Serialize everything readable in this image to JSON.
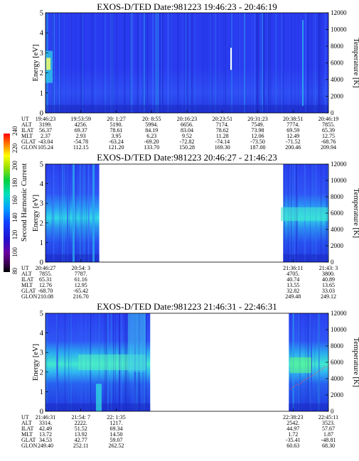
{
  "colorbar": {
    "label": "Second Harmonic Current",
    "ticks": [
      "240",
      "220",
      "200",
      "180",
      "160",
      "140",
      "120",
      "100",
      "80"
    ],
    "vmin": 80,
    "vmax": 240
  },
  "row_labels": [
    "UT",
    "ALT",
    "ILAT",
    "MLT",
    "GLAT",
    "GLON"
  ],
  "chart_data": [
    {
      "type": "heatmap",
      "title": "EXOS-D/TED   Date:981223  19:46:23 - 20:46:19",
      "ylabel": "Energy [eV]",
      "y2label": "Temperature [K]",
      "ylim": [
        0,
        5
      ],
      "y2lim": [
        0,
        12000
      ],
      "yticks": [
        "0",
        "1",
        "2",
        "3",
        "4",
        "5"
      ],
      "y2ticks": [
        "0",
        "2000",
        "4000",
        "6000",
        "8000",
        "10000",
        "12000"
      ],
      "data_coverage": [
        [
          0,
          1
        ]
      ],
      "columns": [
        {
          "t": 0.0,
          "UT": "19:46:23",
          "ALT": "3199.",
          "ILAT": "56.37",
          "MLT": "2.37",
          "GLAT": "-43.04",
          "GLON": "105.24"
        },
        {
          "t": 0.125,
          "UT": "19:53:59",
          "ALT": "4256.",
          "ILAT": "69.37",
          "MLT": "2.93",
          "GLAT": "-54.78",
          "GLON": "112.15"
        },
        {
          "t": 0.25,
          "UT": "20: 1:27",
          "ALT": "5190.",
          "ILAT": "78.61",
          "MLT": "3.95",
          "GLAT": "-63.24",
          "GLON": "121.20"
        },
        {
          "t": 0.375,
          "UT": "20: 8:55",
          "ALT": "5994.",
          "ILAT": "84.19",
          "MLT": "6.23",
          "GLAT": "-69.20",
          "GLON": "133.70"
        },
        {
          "t": 0.5,
          "UT": "20:16:23",
          "ALT": "6656.",
          "ILAT": "83.04",
          "MLT": "9.52",
          "GLAT": "-72.82",
          "GLON": "150.28"
        },
        {
          "t": 0.625,
          "UT": "20:23:51",
          "ALT": "7174.",
          "ILAT": "78.62",
          "MLT": "11.28",
          "GLAT": "-74.14",
          "GLON": "169.30"
        },
        {
          "t": 0.75,
          "UT": "20:31:23",
          "ALT": "7549.",
          "ILAT": "73.98",
          "MLT": "12.06",
          "GLAT": "-73.50",
          "GLON": "187.00"
        },
        {
          "t": 0.875,
          "UT": "20:38:51",
          "ALT": "7774.",
          "ILAT": "69.59",
          "MLT": "12.49",
          "GLAT": "-71.52",
          "GLON": "200.46"
        },
        {
          "t": 1.0,
          "UT": "20:46:19",
          "ALT": "7855.",
          "ILAT": "65.39",
          "MLT": "12.75",
          "GLAT": "-68.76",
          "GLON": "209.94"
        }
      ]
    },
    {
      "type": "heatmap",
      "title": "EXOS-D/TED   Date:981223  20:46:27 - 21:46:23",
      "ylabel": "Energy [eV]",
      "y2label": "Temperature [K]",
      "ylim": [
        0,
        5
      ],
      "y2lim": [
        0,
        12000
      ],
      "yticks": [
        "0",
        "1",
        "2",
        "3",
        "4",
        "5"
      ],
      "y2ticks": [
        "0",
        "2000",
        "4000",
        "6000",
        "8000",
        "10000",
        "12000"
      ],
      "data_coverage": [
        [
          0,
          0.19
        ],
        [
          0.84,
          1
        ]
      ],
      "columns": [
        {
          "t": 0.0,
          "UT": "20:46:27",
          "ALT": "7855.",
          "ILAT": "65.31",
          "MLT": "12.76",
          "GLAT": "-68.70",
          "GLON": "210.08"
        },
        {
          "t": 0.125,
          "UT": "20:54: 3",
          "ALT": "7787.",
          "ILAT": "61.16",
          "MLT": "12.95",
          "GLAT": "-65.42",
          "GLON": "216.70"
        },
        {
          "t": 0.875,
          "UT": "21:36:11",
          "ALT": "4705.",
          "ILAT": "40.74",
          "MLT": "13.55",
          "GLAT": "32.82",
          "GLON": "249.48"
        },
        {
          "t": 1.0,
          "UT": "21:43: 3",
          "ALT": "3800.",
          "ILAT": "40.89",
          "MLT": "13.65",
          "GLAT": "33.03",
          "GLON": "249.12"
        }
      ]
    },
    {
      "type": "heatmap",
      "title": "EXOS-D/TED   Date:981223  21:46:31 - 22:46:31",
      "ylabel": "Energy [eV]",
      "y2label": "Temperature [K]",
      "ylim": [
        0,
        5
      ],
      "y2lim": [
        0,
        12000
      ],
      "yticks": [
        "0",
        "1",
        "2",
        "3",
        "4",
        "5"
      ],
      "y2ticks": [
        "0",
        "2000",
        "4000",
        "6000",
        "8000",
        "10000",
        "12000"
      ],
      "data_coverage": [
        [
          0,
          0.37
        ],
        [
          0.86,
          1
        ]
      ],
      "columns": [
        {
          "t": 0.0,
          "UT": "21:46:31",
          "ALT": "3314.",
          "ILAT": "42.49",
          "MLT": "13.72",
          "GLAT": "34.53",
          "GLON": "249.40"
        },
        {
          "t": 0.125,
          "UT": "21:54: 7",
          "ALT": "2222.",
          "ILAT": "51.52",
          "MLT": "13.92",
          "GLAT": "42.77",
          "GLON": "252.11"
        },
        {
          "t": 0.25,
          "UT": "22: 1:35",
          "ALT": "1217.",
          "ILAT": "69.34",
          "MLT": "14.50",
          "GLAT": "59.07",
          "GLON": "262.52"
        },
        {
          "t": 0.875,
          "UT": "22:38:23",
          "ALT": "2542.",
          "ILAT": "44.97",
          "MLT": "1.72",
          "GLAT": "-35.41",
          "GLON": "60.63"
        },
        {
          "t": 1.0,
          "UT": "22:45:11",
          "ALT": "3523.",
          "ILAT": "57.67",
          "MLT": "1.87",
          "GLAT": "-48.81",
          "GLON": "68.30"
        }
      ]
    }
  ]
}
